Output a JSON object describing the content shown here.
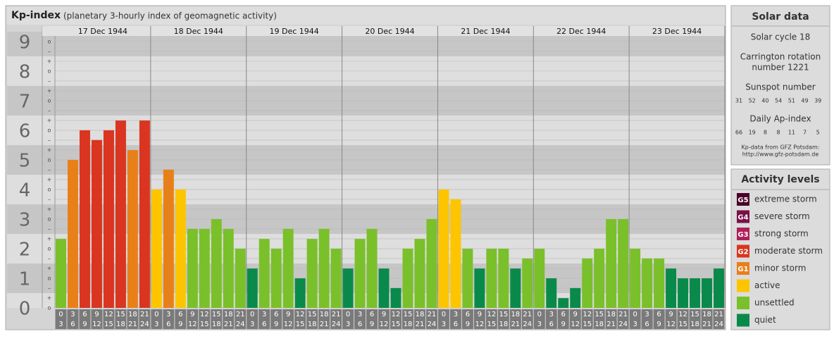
{
  "chart_data": {
    "type": "bar",
    "title": "Kp-index",
    "subtitle": "(planetary 3-hourly index of geomagnetic activity)",
    "days": [
      "17 Dec 1944",
      "18 Dec 1944",
      "19 Dec 1944",
      "20 Dec 1944",
      "21 Dec 1944",
      "22 Dec 1944",
      "23 Dec 1944"
    ],
    "time_slots": [
      [
        0,
        3
      ],
      [
        3,
        6
      ],
      [
        6,
        9
      ],
      [
        9,
        12
      ],
      [
        12,
        15
      ],
      [
        15,
        18
      ],
      [
        18,
        21
      ],
      [
        21,
        24
      ]
    ],
    "ylim": [
      0,
      9.33
    ],
    "yticks": [
      0,
      1,
      2,
      3,
      4,
      5,
      6,
      7,
      8,
      9
    ],
    "third_labels": [
      "–",
      "o",
      "+"
    ],
    "grid": true,
    "values": [
      2.33,
      5,
      6,
      5.67,
      6,
      6.33,
      5.33,
      6.33,
      4,
      4.67,
      4,
      2.67,
      2.67,
      3,
      2.67,
      2,
      1.33,
      2.33,
      2,
      2.67,
      1,
      2.33,
      2.67,
      2,
      1.33,
      2.33,
      2.67,
      1.33,
      0.67,
      2,
      2.33,
      3,
      4,
      3.67,
      2,
      1.33,
      2,
      2,
      1.33,
      1.67,
      2,
      1,
      0.33,
      0.67,
      1.67,
      2,
      3,
      3,
      2,
      1.67,
      1.67,
      1.33,
      1,
      1,
      1,
      1.33
    ],
    "colors": [
      "#7ac02a",
      "#e8801a",
      "#d93520",
      "#d93520",
      "#d93520",
      "#d93520",
      "#e8801a",
      "#d93520",
      "#fcc500",
      "#e8801a",
      "#fcc500",
      "#7ac02a",
      "#7ac02a",
      "#7ac02a",
      "#7ac02a",
      "#7ac02a",
      "#0a8a4a",
      "#7ac02a",
      "#7ac02a",
      "#7ac02a",
      "#0a8a4a",
      "#7ac02a",
      "#7ac02a",
      "#7ac02a",
      "#0a8a4a",
      "#7ac02a",
      "#7ac02a",
      "#0a8a4a",
      "#0a8a4a",
      "#7ac02a",
      "#7ac02a",
      "#7ac02a",
      "#fcc500",
      "#fcc500",
      "#7ac02a",
      "#0a8a4a",
      "#7ac02a",
      "#7ac02a",
      "#0a8a4a",
      "#7ac02a",
      "#7ac02a",
      "#0a8a4a",
      "#0a8a4a",
      "#0a8a4a",
      "#7ac02a",
      "#7ac02a",
      "#7ac02a",
      "#7ac02a",
      "#7ac02a",
      "#7ac02a",
      "#7ac02a",
      "#0a8a4a",
      "#0a8a4a",
      "#0a8a4a",
      "#0a8a4a",
      "#0a8a4a"
    ]
  },
  "solar_data": {
    "title": "Solar data",
    "solar_cycle": "Solar cycle 18",
    "carrington": [
      "Carrington rotation",
      "number 1221"
    ],
    "sunspot_title": "Sunspot number",
    "sunspot": [
      31,
      52,
      40,
      54,
      51,
      49,
      39
    ],
    "ap_title": "Daily Ap-index",
    "ap": [
      66,
      19,
      8,
      8,
      11,
      7,
      5
    ],
    "source": [
      "Kp-data from GFZ Potsdam:",
      "http://www.gfz-potsdam.de"
    ]
  },
  "activity_levels": {
    "title": "Activity levels",
    "items": [
      {
        "badge": "G5",
        "name": "extreme storm",
        "color": "#4a0028"
      },
      {
        "badge": "G4",
        "name": "severe storm",
        "color": "#7a1048"
      },
      {
        "badge": "G3",
        "name": "strong storm",
        "color": "#b01e5a"
      },
      {
        "badge": "G2",
        "name": "moderate storm",
        "color": "#d93520"
      },
      {
        "badge": "G1",
        "name": "minor storm",
        "color": "#e8801a"
      },
      {
        "name": "active",
        "color": "#fcc500"
      },
      {
        "name": "unsettled",
        "color": "#7ac02a"
      },
      {
        "name": "quiet",
        "color": "#0a8a4a"
      }
    ]
  }
}
